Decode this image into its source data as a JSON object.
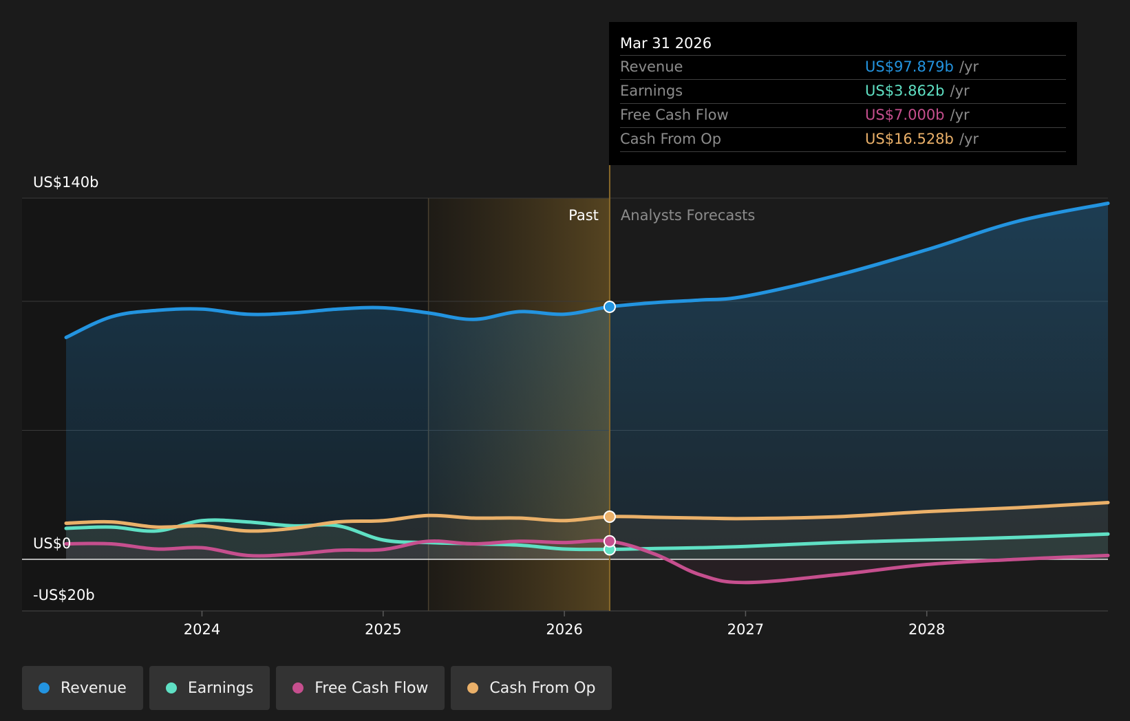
{
  "chart_data": {
    "type": "area",
    "x_axis": {
      "ticks": [
        "2024",
        "2025",
        "2026",
        "2027",
        "2028"
      ],
      "range": [
        2023.25,
        2029.0
      ]
    },
    "y_axis": {
      "ticks": [
        "US$140b",
        "US$0",
        "-US$20b"
      ],
      "range": [
        -20,
        140
      ],
      "gridlines": [
        0,
        50,
        100,
        140
      ]
    },
    "divider_labels": {
      "past": "Past",
      "forecast": "Analysts Forecasts"
    },
    "divider_x": 2026.25,
    "highlight_start_x": 2025.25,
    "series": [
      {
        "name": "Revenue",
        "color": "#2394e0",
        "points": [
          [
            2023.25,
            86
          ],
          [
            2023.5,
            94
          ],
          [
            2023.75,
            96.5
          ],
          [
            2024.0,
            97
          ],
          [
            2024.25,
            95
          ],
          [
            2024.5,
            95.5
          ],
          [
            2024.75,
            97
          ],
          [
            2025.0,
            97.5
          ],
          [
            2025.25,
            95.5
          ],
          [
            2025.5,
            93
          ],
          [
            2025.75,
            96
          ],
          [
            2026.0,
            95
          ],
          [
            2026.25,
            97.879
          ],
          [
            2026.5,
            99.5
          ],
          [
            2026.75,
            100.5
          ],
          [
            2027.0,
            102
          ],
          [
            2027.5,
            110
          ],
          [
            2028.0,
            120
          ],
          [
            2028.5,
            131
          ],
          [
            2029.0,
            138
          ]
        ]
      },
      {
        "name": "Earnings",
        "color": "#5fe0c4",
        "points": [
          [
            2023.25,
            12
          ],
          [
            2023.5,
            12.5
          ],
          [
            2023.75,
            11
          ],
          [
            2024.0,
            15
          ],
          [
            2024.25,
            14.5
          ],
          [
            2024.5,
            13
          ],
          [
            2024.75,
            13
          ],
          [
            2025.0,
            7.5
          ],
          [
            2025.25,
            6.5
          ],
          [
            2025.5,
            6
          ],
          [
            2025.75,
            5.5
          ],
          [
            2026.0,
            4
          ],
          [
            2026.25,
            3.862
          ],
          [
            2026.5,
            4.2
          ],
          [
            2026.75,
            4.5
          ],
          [
            2027.0,
            5
          ],
          [
            2027.5,
            6.5
          ],
          [
            2028.0,
            7.5
          ],
          [
            2028.5,
            8.5
          ],
          [
            2029.0,
            9.8
          ]
        ]
      },
      {
        "name": "Free Cash Flow",
        "color": "#c64f8e",
        "points": [
          [
            2023.25,
            6
          ],
          [
            2023.5,
            6
          ],
          [
            2023.75,
            4
          ],
          [
            2024.0,
            4.5
          ],
          [
            2024.25,
            1.5
          ],
          [
            2024.5,
            2
          ],
          [
            2024.75,
            3.5
          ],
          [
            2025.0,
            3.8
          ],
          [
            2025.25,
            7
          ],
          [
            2025.5,
            6
          ],
          [
            2025.75,
            7
          ],
          [
            2026.0,
            6.5
          ],
          [
            2026.25,
            7.0
          ],
          [
            2026.5,
            2
          ],
          [
            2026.75,
            -6
          ],
          [
            2027.0,
            -9
          ],
          [
            2027.5,
            -6
          ],
          [
            2028.0,
            -2
          ],
          [
            2028.5,
            0
          ],
          [
            2029.0,
            1.5
          ]
        ]
      },
      {
        "name": "Cash From Op",
        "color": "#eab069",
        "points": [
          [
            2023.25,
            14
          ],
          [
            2023.5,
            14.5
          ],
          [
            2023.75,
            12.5
          ],
          [
            2024.0,
            13
          ],
          [
            2024.25,
            11
          ],
          [
            2024.5,
            12
          ],
          [
            2024.75,
            14.5
          ],
          [
            2025.0,
            15
          ],
          [
            2025.25,
            17
          ],
          [
            2025.5,
            16
          ],
          [
            2025.75,
            16
          ],
          [
            2026.0,
            15
          ],
          [
            2026.25,
            16.528
          ],
          [
            2026.5,
            16.3
          ],
          [
            2026.75,
            16
          ],
          [
            2027.0,
            15.8
          ],
          [
            2027.5,
            16.5
          ],
          [
            2028.0,
            18.5
          ],
          [
            2028.5,
            20
          ],
          [
            2029.0,
            22
          ]
        ]
      }
    ],
    "markers_at": 2026.25,
    "tooltip": {
      "date": "Mar 31 2026",
      "rows": [
        {
          "label": "Revenue",
          "value": "US$97.879b",
          "unit": "/yr",
          "color": "#2394e0"
        },
        {
          "label": "Earnings",
          "value": "US$3.862b",
          "unit": "/yr",
          "color": "#5fe0c4"
        },
        {
          "label": "Free Cash Flow",
          "value": "US$7.000b",
          "unit": "/yr",
          "color": "#c64f8e"
        },
        {
          "label": "Cash From Op",
          "value": "US$16.528b",
          "unit": "/yr",
          "color": "#eab069"
        }
      ]
    },
    "legend": [
      {
        "label": "Revenue",
        "color": "#2394e0"
      },
      {
        "label": "Earnings",
        "color": "#5fe0c4"
      },
      {
        "label": "Free Cash Flow",
        "color": "#c64f8e"
      },
      {
        "label": "Cash From Op",
        "color": "#eab069"
      }
    ]
  }
}
